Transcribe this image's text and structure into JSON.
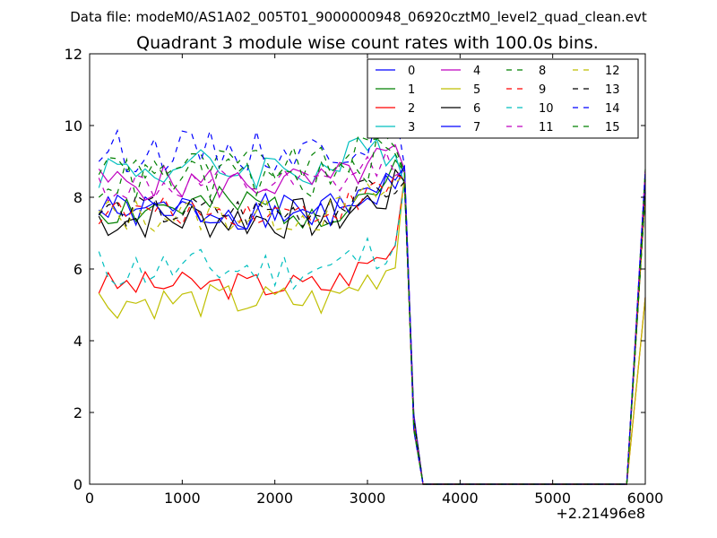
{
  "chart_data": {
    "type": "line",
    "subtitle": "Data file: modeM0/AS1A02_005T01_9000000948_06920cztM0_level2_quad_clean.evt",
    "title": "Quadrant 3 module wise count rates with 100.0s bins.",
    "x_offset_label": "+2.21496e8",
    "xlim": [
      0,
      6000
    ],
    "ylim": [
      0,
      12
    ],
    "x_ticks": [
      {
        "value": 0,
        "label": "0"
      },
      {
        "value": 1000,
        "label": "1000"
      },
      {
        "value": 2000,
        "label": "2000"
      },
      {
        "value": 3000,
        "label": "3000"
      },
      {
        "value": 4000,
        "label": "4000"
      },
      {
        "value": 5000,
        "label": "5000"
      },
      {
        "value": 6000,
        "label": "6000"
      }
    ],
    "y_ticks": [
      {
        "value": 0,
        "label": "0"
      },
      {
        "value": 2,
        "label": "2"
      },
      {
        "value": 4,
        "label": "4"
      },
      {
        "value": 6,
        "label": "6"
      },
      {
        "value": 8,
        "label": "8"
      },
      {
        "value": 10,
        "label": "10"
      },
      {
        "value": 12,
        "label": "12"
      }
    ],
    "legend_position": "top-right",
    "legend_columns": 4,
    "series": [
      {
        "name": "0",
        "color": "#0000ff",
        "dash": "solid",
        "base": 7.6,
        "amp": 0.25,
        "seed": 1
      },
      {
        "name": "1",
        "color": "#008000",
        "dash": "solid",
        "base": 7.7,
        "amp": 0.3,
        "seed": 2
      },
      {
        "name": "2",
        "color": "#ff0000",
        "dash": "solid",
        "base": 5.55,
        "amp": 0.2,
        "seed": 3
      },
      {
        "name": "3",
        "color": "#00bfbf",
        "dash": "solid",
        "base": 8.8,
        "amp": 0.3,
        "seed": 4
      },
      {
        "name": "4",
        "color": "#bf00bf",
        "dash": "solid",
        "base": 8.4,
        "amp": 0.25,
        "seed": 5
      },
      {
        "name": "5",
        "color": "#bfbf00",
        "dash": "solid",
        "base": 5.1,
        "amp": 0.25,
        "seed": 6
      },
      {
        "name": "6",
        "color": "#000000",
        "dash": "solid",
        "base": 7.4,
        "amp": 0.3,
        "seed": 7
      },
      {
        "name": "7",
        "color": "#0000ff",
        "dash": "solid",
        "base": 7.6,
        "amp": 0.25,
        "seed": 8
      },
      {
        "name": "8",
        "color": "#008000",
        "dash": "dashed",
        "base": 8.9,
        "amp": 0.25,
        "seed": 9
      },
      {
        "name": "9",
        "color": "#ff0000",
        "dash": "dashed",
        "base": 7.6,
        "amp": 0.2,
        "seed": 10
      },
      {
        "name": "10",
        "color": "#00bfbf",
        "dash": "dashed",
        "base": 6.0,
        "amp": 0.3,
        "seed": 11
      },
      {
        "name": "11",
        "color": "#bf00bf",
        "dash": "dashed",
        "base": 8.3,
        "amp": 0.25,
        "seed": 12
      },
      {
        "name": "12",
        "color": "#bfbf00",
        "dash": "dashed",
        "base": 7.5,
        "amp": 0.25,
        "seed": 13
      },
      {
        "name": "13",
        "color": "#000000",
        "dash": "dashed",
        "base": 7.6,
        "amp": 0.25,
        "seed": 14
      },
      {
        "name": "14",
        "color": "#0000ff",
        "dash": "dashed",
        "base": 9.3,
        "amp": 0.3,
        "seed": 15
      },
      {
        "name": "15",
        "color": "#008000",
        "dash": "dashed",
        "base": 8.5,
        "amp": 0.3,
        "seed": 16
      }
    ],
    "shape": {
      "active_start_x": 100,
      "active_end_x": 3400,
      "bin": 100,
      "drop_x": [
        3500,
        3600
      ],
      "zero_end_x": 5800,
      "end_x": 6000,
      "end_values_note": "rises back to near 8 at x=6000"
    }
  }
}
